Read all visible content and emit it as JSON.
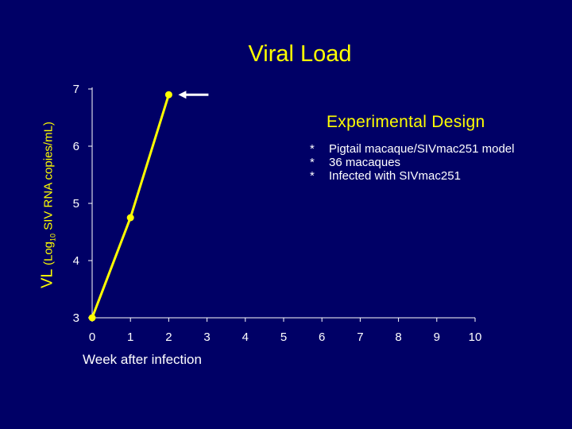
{
  "chart_data": {
    "type": "line",
    "title": "Viral Load",
    "ylabel": {
      "main": "VL",
      "open": "(Log",
      "sub": "10",
      "rest": " SIV RNA copies/mL)"
    },
    "xlabel": "Week after infection",
    "x": [
      0,
      1,
      2
    ],
    "values": [
      3.0,
      4.75,
      6.9
    ],
    "xlim": [
      0,
      10
    ],
    "ylim": [
      3,
      7
    ],
    "xticks": [
      "0",
      "1",
      "2",
      "3",
      "4",
      "5",
      "6",
      "7",
      "8",
      "9",
      "10"
    ],
    "yticks": [
      "3",
      "4",
      "5",
      "6",
      "7"
    ],
    "grid": false,
    "annotation": {
      "type": "arrow",
      "points_to_x": 2,
      "points_to_y": 6.9
    },
    "colors": {
      "line": "#ffff00",
      "marker": "#ffff00",
      "axis": "#ffffff"
    }
  },
  "design": {
    "title": "Experimental Design",
    "items": [
      {
        "bullet": "*",
        "text": "Pigtail macaque/SIVmac251 model"
      },
      {
        "bullet": "*",
        "text": "36 macaques"
      },
      {
        "bullet": "*",
        "text": "Infected with SIVmac251"
      }
    ]
  }
}
